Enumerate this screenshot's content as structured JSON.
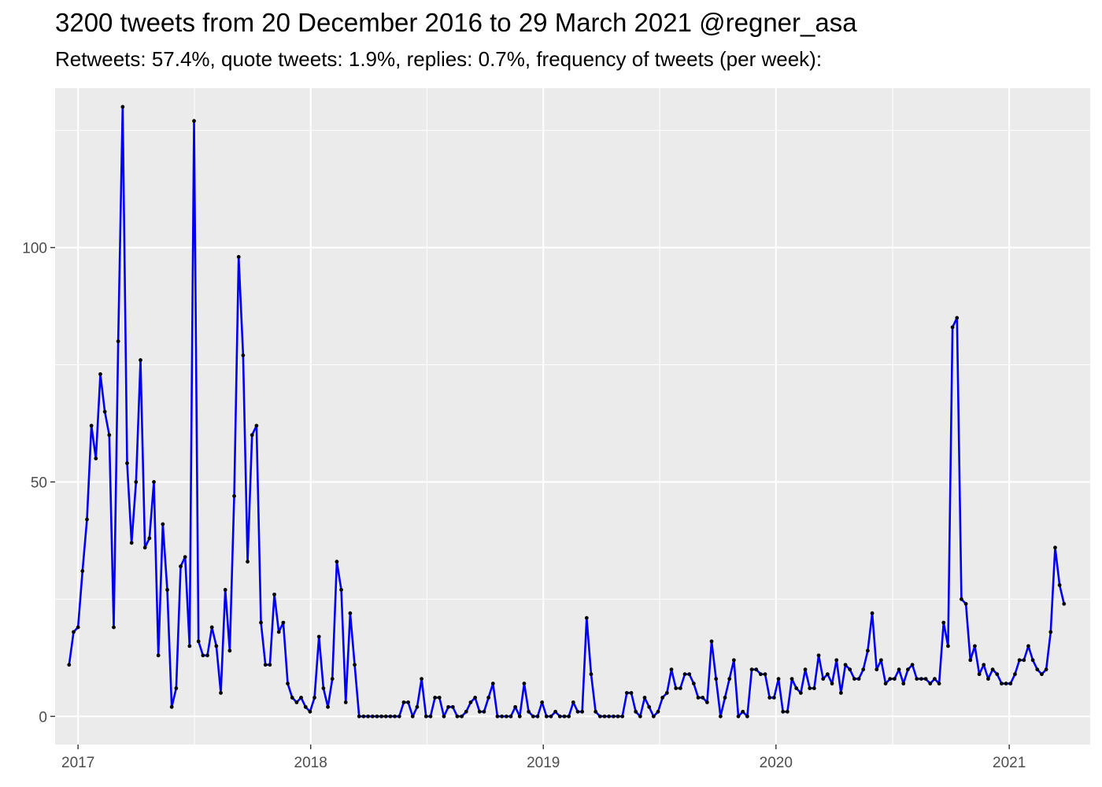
{
  "title": "3200 tweets from 20 December 2016 to 29 March 2021 @regner_asa",
  "subtitle": "Retweets: 57.4%, quote tweets: 1.9%, replies: 0.7%, frequency of tweets (per week):",
  "colors": {
    "panel": "#ebebeb",
    "grid": "#ffffff",
    "line": "#0000ee",
    "point": "#000000"
  },
  "chart_data": {
    "type": "line",
    "title": "3200 tweets from 20 December 2016 to 29 March 2021 @regner_asa",
    "subtitle": "Retweets: 57.4%, quote tweets: 1.9%, replies: 0.7%, frequency of tweets (per week):",
    "xlabel": "",
    "ylabel": "",
    "x_ticks": [
      "2017",
      "2018",
      "2019",
      "2020",
      "2021"
    ],
    "y_ticks": [
      0,
      50,
      100
    ],
    "ylim": [
      -6,
      134
    ],
    "xlim": [
      "2016-11-26",
      "2021-05-08"
    ],
    "grid": true,
    "legend": "none",
    "series": [
      {
        "x": [
          "2016-12-18",
          "2016-12-25",
          "2017-01-01",
          "2017-01-08",
          "2017-01-15",
          "2017-01-22",
          "2017-01-29",
          "2017-02-05",
          "2017-02-12",
          "2017-02-19",
          "2017-02-26",
          "2017-03-05",
          "2017-03-12",
          "2017-03-19",
          "2017-03-26",
          "2017-04-02",
          "2017-04-09",
          "2017-04-16",
          "2017-04-23",
          "2017-04-30",
          "2017-05-07",
          "2017-05-14",
          "2017-05-21",
          "2017-05-28",
          "2017-06-04",
          "2017-06-11",
          "2017-06-18",
          "2017-06-25",
          "2017-07-02",
          "2017-07-09",
          "2017-07-16",
          "2017-07-23",
          "2017-07-30",
          "2017-08-06",
          "2017-08-13",
          "2017-08-20",
          "2017-08-27",
          "2017-09-03",
          "2017-09-10",
          "2017-09-17",
          "2017-09-24",
          "2017-10-01",
          "2017-10-08",
          "2017-10-15",
          "2017-10-22",
          "2017-10-29",
          "2017-11-05",
          "2017-11-12",
          "2017-11-19",
          "2017-11-26",
          "2017-12-03",
          "2017-12-10",
          "2017-12-17",
          "2017-12-24",
          "2017-12-31",
          "2018-01-07",
          "2018-01-14",
          "2018-01-21",
          "2018-01-28",
          "2018-02-04",
          "2018-02-11",
          "2018-02-18",
          "2018-02-25",
          "2018-03-04",
          "2018-03-11",
          "2018-03-18",
          "2018-03-25",
          "2018-04-01",
          "2018-04-08",
          "2018-04-15",
          "2018-04-22",
          "2018-04-29",
          "2018-05-06",
          "2018-05-13",
          "2018-05-20",
          "2018-05-27",
          "2018-06-03",
          "2018-06-10",
          "2018-06-17",
          "2018-06-24",
          "2018-07-01",
          "2018-07-08",
          "2018-07-15",
          "2018-07-22",
          "2018-07-29",
          "2018-08-05",
          "2018-08-12",
          "2018-08-19",
          "2018-08-26",
          "2018-09-02",
          "2018-09-09",
          "2018-09-16",
          "2018-09-23",
          "2018-09-30",
          "2018-10-07",
          "2018-10-14",
          "2018-10-21",
          "2018-10-28",
          "2018-11-04",
          "2018-11-11",
          "2018-11-18",
          "2018-11-25",
          "2018-12-02",
          "2018-12-09",
          "2018-12-16",
          "2018-12-23",
          "2018-12-30",
          "2019-01-06",
          "2019-01-13",
          "2019-01-20",
          "2019-01-27",
          "2019-02-03",
          "2019-02-10",
          "2019-02-17",
          "2019-02-24",
          "2019-03-03",
          "2019-03-10",
          "2019-03-17",
          "2019-03-24",
          "2019-03-31",
          "2019-04-07",
          "2019-04-14",
          "2019-04-21",
          "2019-04-28",
          "2019-05-05",
          "2019-05-12",
          "2019-05-19",
          "2019-05-26",
          "2019-06-02",
          "2019-06-09",
          "2019-06-16",
          "2019-06-23",
          "2019-06-30",
          "2019-07-07",
          "2019-07-14",
          "2019-07-21",
          "2019-07-28",
          "2019-08-04",
          "2019-08-11",
          "2019-08-18",
          "2019-08-25",
          "2019-09-01",
          "2019-09-08",
          "2019-09-15",
          "2019-09-22",
          "2019-09-29",
          "2019-10-06",
          "2019-10-13",
          "2019-10-20",
          "2019-10-27",
          "2019-11-03",
          "2019-11-10",
          "2019-11-17",
          "2019-11-24",
          "2019-12-01",
          "2019-12-08",
          "2019-12-15",
          "2019-12-22",
          "2019-12-29",
          "2020-01-05",
          "2020-01-12",
          "2020-01-19",
          "2020-01-26",
          "2020-02-02",
          "2020-02-09",
          "2020-02-16",
          "2020-02-23",
          "2020-03-01",
          "2020-03-08",
          "2020-03-15",
          "2020-03-22",
          "2020-03-29",
          "2020-04-05",
          "2020-04-12",
          "2020-04-19",
          "2020-04-26",
          "2020-05-03",
          "2020-05-10",
          "2020-05-17",
          "2020-05-24",
          "2020-05-31",
          "2020-06-07",
          "2020-06-14",
          "2020-06-21",
          "2020-06-28",
          "2020-07-05",
          "2020-07-12",
          "2020-07-19",
          "2020-07-26",
          "2020-08-02",
          "2020-08-09",
          "2020-08-16",
          "2020-08-23",
          "2020-08-30",
          "2020-09-06",
          "2020-09-13",
          "2020-09-20",
          "2020-09-27",
          "2020-10-04",
          "2020-10-11",
          "2020-10-18",
          "2020-10-25",
          "2020-11-01",
          "2020-11-08",
          "2020-11-15",
          "2020-11-22",
          "2020-11-29",
          "2020-12-06",
          "2020-12-13",
          "2020-12-20",
          "2020-12-27",
          "2021-01-03",
          "2021-01-10",
          "2021-01-17",
          "2021-01-24",
          "2021-01-31",
          "2021-02-07",
          "2021-02-14",
          "2021-02-21",
          "2021-02-28",
          "2021-03-07",
          "2021-03-14",
          "2021-03-21",
          "2021-03-28"
        ],
        "values": [
          11,
          18,
          19,
          31,
          42,
          62,
          55,
          73,
          65,
          60,
          19,
          80,
          130,
          54,
          37,
          50,
          76,
          36,
          38,
          50,
          13,
          41,
          27,
          2,
          6,
          32,
          34,
          15,
          127,
          16,
          13,
          13,
          19,
          15,
          5,
          27,
          14,
          47,
          98,
          77,
          33,
          60,
          62,
          20,
          11,
          11,
          26,
          18,
          20,
          7,
          4,
          3,
          4,
          2,
          1,
          4,
          17,
          6,
          2,
          8,
          33,
          27,
          3,
          22,
          11,
          0,
          0,
          0,
          0,
          0,
          0,
          0,
          0,
          0,
          0,
          3,
          3,
          0,
          2,
          8,
          0,
          0,
          4,
          4,
          0,
          2,
          2,
          0,
          0,
          1,
          3,
          4,
          1,
          1,
          4,
          7,
          0,
          0,
          0,
          0,
          2,
          0,
          7,
          1,
          0,
          0,
          3,
          0,
          0,
          1,
          0,
          0,
          0,
          3,
          1,
          1,
          21,
          9,
          1,
          0,
          0,
          0,
          0,
          0,
          0,
          5,
          5,
          1,
          0,
          4,
          2,
          0,
          1,
          4,
          5,
          10,
          6,
          6,
          9,
          9,
          7,
          4,
          4,
          3,
          16,
          8,
          0,
          4,
          8,
          12,
          0,
          1,
          0,
          10,
          10,
          9,
          9,
          4,
          4,
          8,
          1,
          1,
          8,
          6,
          5,
          10,
          6,
          6,
          13,
          8,
          9,
          7,
          12,
          5,
          11,
          10,
          8,
          8,
          10,
          14,
          22,
          10,
          12,
          7,
          8,
          8,
          10,
          7,
          10,
          11,
          8,
          8,
          8,
          7,
          8,
          7,
          20,
          15,
          83,
          85,
          25,
          24,
          12,
          15,
          9,
          11,
          8,
          10,
          9,
          7,
          7,
          7,
          9,
          12,
          12,
          15,
          12,
          10,
          9,
          10,
          18,
          36,
          28,
          24
        ]
      }
    ]
  }
}
